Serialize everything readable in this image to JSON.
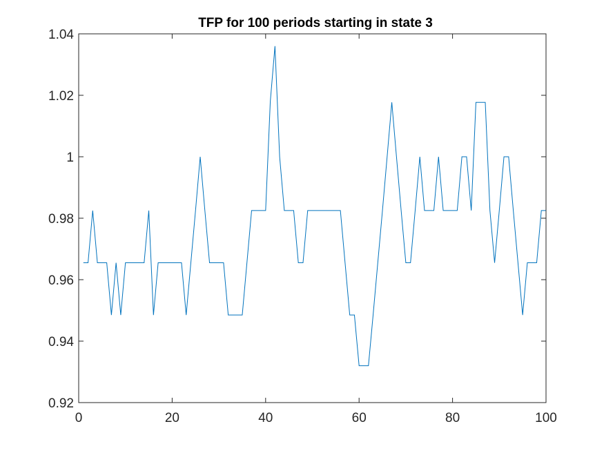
{
  "chart_data": {
    "type": "line",
    "title": "TFP for 100 periods starting in state 3",
    "xlabel": "",
    "ylabel": "",
    "xlim": [
      0,
      100
    ],
    "ylim": [
      0.92,
      1.04
    ],
    "xticks": [
      0,
      20,
      40,
      60,
      80,
      100
    ],
    "yticks": [
      0.92,
      0.94,
      0.96,
      0.98,
      1.0,
      1.02,
      1.04
    ],
    "xtick_labels": [
      "0",
      "20",
      "40",
      "60",
      "80",
      "100"
    ],
    "ytick_labels": [
      "0.92",
      "0.94",
      "0.96",
      "0.98",
      "1",
      "1.02",
      "1.04"
    ],
    "grid": false,
    "legend": "none",
    "series": [
      {
        "color": "#0072BD",
        "x": [
          1,
          2,
          3,
          4,
          5,
          6,
          7,
          8,
          9,
          10,
          11,
          12,
          13,
          14,
          15,
          16,
          17,
          18,
          19,
          20,
          21,
          22,
          23,
          24,
          25,
          26,
          27,
          28,
          29,
          30,
          31,
          32,
          33,
          34,
          35,
          36,
          37,
          38,
          39,
          40,
          41,
          42,
          43,
          44,
          45,
          46,
          47,
          48,
          49,
          50,
          51,
          52,
          53,
          54,
          55,
          56,
          57,
          58,
          59,
          60,
          61,
          62,
          63,
          64,
          65,
          66,
          67,
          68,
          69,
          70,
          71,
          72,
          73,
          74,
          75,
          76,
          77,
          78,
          79,
          80,
          81,
          82,
          83,
          84,
          85,
          86,
          87,
          88,
          89,
          90,
          91,
          92,
          93,
          94,
          95,
          96,
          97,
          98,
          99,
          100
        ],
        "values": [
          0.9655,
          0.9655,
          0.9825,
          0.9655,
          0.9655,
          0.9655,
          0.9485,
          0.9655,
          0.9485,
          0.9655,
          0.9655,
          0.9655,
          0.9655,
          0.9655,
          0.9825,
          0.9485,
          0.9655,
          0.9655,
          0.9655,
          0.9655,
          0.9655,
          0.9655,
          0.9485,
          0.9655,
          0.9825,
          1.0,
          0.9825,
          0.9655,
          0.9655,
          0.9655,
          0.9655,
          0.9485,
          0.9485,
          0.9485,
          0.9485,
          0.9655,
          0.9825,
          0.9825,
          0.9825,
          0.9825,
          1.018,
          1.036,
          1.0,
          0.9825,
          0.9825,
          0.9825,
          0.9655,
          0.9655,
          0.9825,
          0.9825,
          0.9825,
          0.9825,
          0.9825,
          0.9825,
          0.9825,
          0.9825,
          0.9655,
          0.9485,
          0.9485,
          0.932,
          0.932,
          0.932,
          0.9485,
          0.9655,
          0.9825,
          1.0,
          1.0177,
          1.0,
          0.9825,
          0.9655,
          0.9655,
          0.9825,
          1.0,
          0.9825,
          0.9825,
          0.9825,
          1.0,
          0.9825,
          0.9825,
          0.9825,
          0.9825,
          1.0,
          1.0,
          0.9825,
          1.0177,
          1.0177,
          1.0177,
          0.9825,
          0.9655,
          0.9825,
          1.0,
          1.0,
          0.9825,
          0.9655,
          0.9485,
          0.9655,
          0.9655,
          0.9655,
          0.9825,
          0.9825
        ]
      }
    ]
  },
  "style": {
    "line_color": "#0072BD",
    "axis_color": "#262626",
    "background": "#ffffff"
  }
}
